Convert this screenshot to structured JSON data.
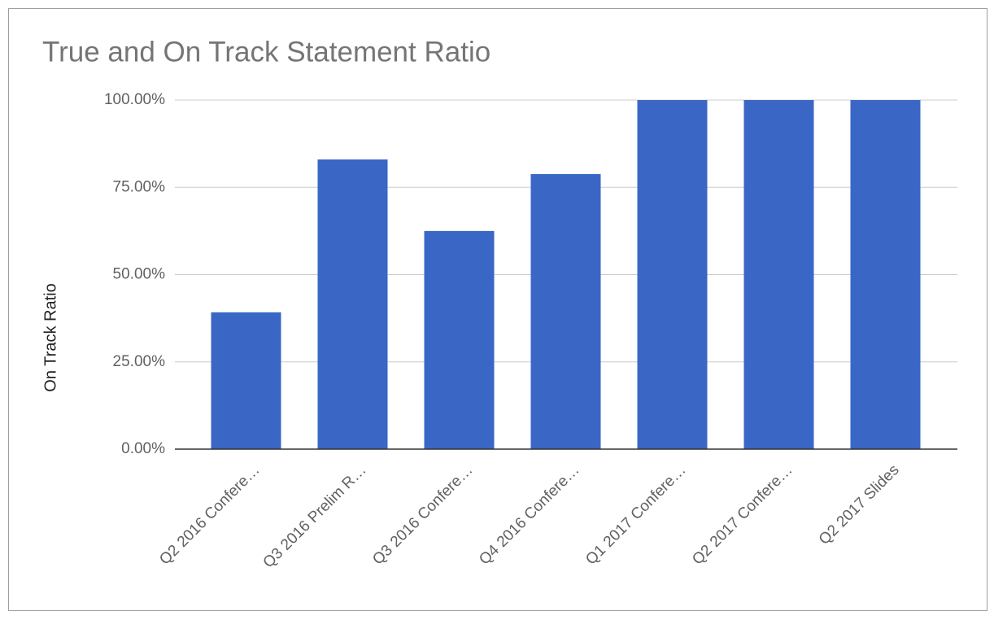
{
  "chart_data": {
    "type": "bar",
    "title": "True and On Track Statement Ratio",
    "y_label": "On Track Ratio",
    "categories": [
      "Q2 2016 Confere…",
      "Q3 2016 Prelim R…",
      "Q3 2016 Confere…",
      "Q4 2016 Confere…",
      "Q1 2017 Confere…",
      "Q2 2017 Confere…",
      "Q2 2017 Slides"
    ],
    "values": [
      39.2,
      83,
      62.5,
      78.8,
      100,
      100,
      100
    ],
    "color": "#3a67c5",
    "ylim": [
      0,
      100
    ],
    "yticks": [
      {
        "value": 0,
        "label": "0.00%"
      },
      {
        "value": 25,
        "label": "25.00%"
      },
      {
        "value": 50,
        "label": "50.00%"
      },
      {
        "value": 75,
        "label": "75.00%"
      },
      {
        "value": 100,
        "label": "100.00%"
      }
    ],
    "grid": true
  }
}
